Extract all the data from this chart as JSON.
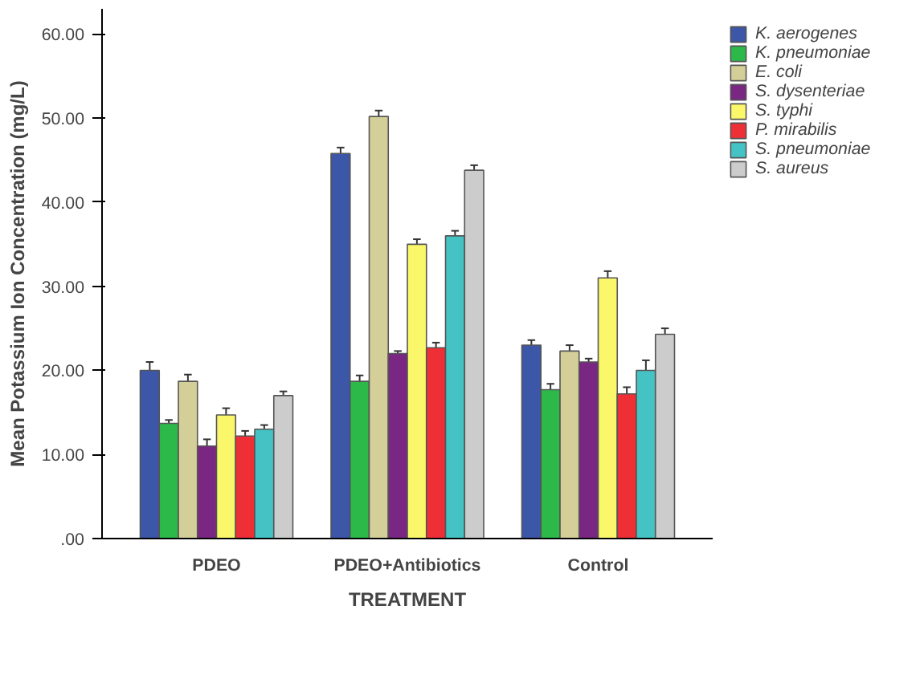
{
  "chart_data": {
    "type": "bar",
    "xlabel": "TREATMENT",
    "ylabel": "Mean Potassium Ion Concentration (mg/L)",
    "categories": [
      "PDEO",
      "PDEO+Antibiotics",
      "Control"
    ],
    "ylim": [
      0,
      63
    ],
    "yticks": [
      {
        "value": 0,
        "label": ".00"
      },
      {
        "value": 10,
        "label": "10.00"
      },
      {
        "value": 20,
        "label": "20.00"
      },
      {
        "value": 30,
        "label": "30.00"
      },
      {
        "value": 40,
        "label": "40.00"
      },
      {
        "value": 50,
        "label": "50.00"
      },
      {
        "value": 60,
        "label": "60.00"
      }
    ],
    "legend": "right",
    "series": [
      {
        "name": "K. aerogenes",
        "color": "#3c56a8",
        "values": [
          20,
          45.8,
          23
        ],
        "errors": [
          1,
          0.7,
          0.6
        ]
      },
      {
        "name": "K. pneumoniae",
        "color": "#2db84a",
        "values": [
          13.7,
          18.7,
          17.7
        ],
        "errors": [
          0.4,
          0.7,
          0.7
        ]
      },
      {
        "name": "E. coli",
        "color": "#d4cf98",
        "values": [
          18.7,
          50.2,
          22.3
        ],
        "errors": [
          0.8,
          0.7,
          0.7
        ]
      },
      {
        "name": "S. dysenteriae",
        "color": "#7a2683",
        "values": [
          11,
          22,
          21
        ],
        "errors": [
          0.8,
          0.3,
          0.4
        ]
      },
      {
        "name": "S. typhi",
        "color": "#fbf76b",
        "values": [
          14.7,
          35,
          31
        ],
        "errors": [
          0.8,
          0.6,
          0.8
        ]
      },
      {
        "name": "P. mirabilis",
        "color": "#ee3036",
        "values": [
          12.2,
          22.7,
          17.2
        ],
        "errors": [
          0.6,
          0.6,
          0.8
        ]
      },
      {
        "name": "S. pneumoniae",
        "color": "#45c2c4",
        "values": [
          13,
          36,
          20
        ],
        "errors": [
          0.5,
          0.6,
          1.2
        ]
      },
      {
        "name": "S. aureus",
        "color": "#cccccc",
        "values": [
          17,
          43.8,
          24.3
        ],
        "errors": [
          0.5,
          0.6,
          0.7
        ]
      }
    ]
  }
}
